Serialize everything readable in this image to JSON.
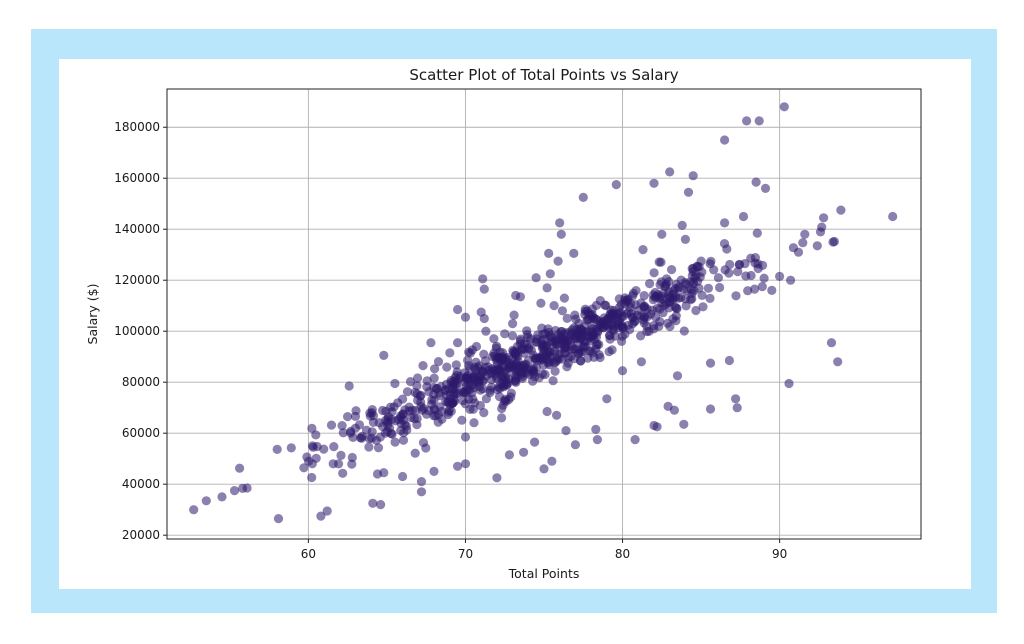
{
  "chart_data": {
    "type": "scatter",
    "title": "Scatter Plot of Total Points vs Salary",
    "xlabel": "Total Points",
    "ylabel": "Salary ($)",
    "xlim": [
      51,
      99
    ],
    "ylim": [
      18500,
      195000
    ],
    "xticks": [
      60,
      70,
      80,
      90
    ],
    "yticks": [
      20000,
      40000,
      60000,
      80000,
      100000,
      120000,
      140000,
      160000,
      180000
    ],
    "grid": true,
    "point_color": "#2e1a6b",
    "frame_color": "#b9e6fb",
    "outliers": [
      [
        90.3,
        188000
      ],
      [
        87.9,
        182500
      ],
      [
        88.7,
        182500
      ],
      [
        86.5,
        175000
      ],
      [
        83.0,
        162500
      ],
      [
        84.5,
        161000
      ],
      [
        79.6,
        157500
      ],
      [
        82.0,
        158000
      ],
      [
        88.5,
        158500
      ],
      [
        89.1,
        156000
      ],
      [
        84.2,
        154500
      ],
      [
        77.5,
        152500
      ],
      [
        76.0,
        142500
      ],
      [
        83.8,
        141500
      ],
      [
        76.1,
        138000
      ],
      [
        81.3,
        132000
      ],
      [
        82.5,
        138000
      ],
      [
        84.0,
        136000
      ],
      [
        76.9,
        130500
      ],
      [
        75.3,
        130500
      ],
      [
        75.9,
        127500
      ],
      [
        75.4,
        122500
      ],
      [
        74.5,
        121000
      ],
      [
        71.1,
        120500
      ],
      [
        71.2,
        116500
      ],
      [
        75.2,
        117000
      ],
      [
        73.2,
        114000
      ],
      [
        73.5,
        113500
      ],
      [
        76.3,
        113000
      ],
      [
        74.8,
        111000
      ],
      [
        69.5,
        108500
      ],
      [
        70.0,
        105500
      ],
      [
        71.0,
        107500
      ],
      [
        71.2,
        105000
      ],
      [
        73.0,
        103000
      ],
      [
        71.3,
        100000
      ],
      [
        72.5,
        99000
      ],
      [
        69.5,
        95500
      ],
      [
        70.7,
        94000
      ],
      [
        69.0,
        91500
      ],
      [
        64.8,
        90500
      ],
      [
        67.8,
        95500
      ],
      [
        73.5,
        95000
      ],
      [
        75.0,
        94000
      ],
      [
        76.0,
        91000
      ],
      [
        80.0,
        84500
      ],
      [
        67.3,
        86500
      ],
      [
        62.6,
        78500
      ],
      [
        81.2,
        88000
      ],
      [
        85.6,
        87500
      ],
      [
        86.8,
        88500
      ],
      [
        83.5,
        82500
      ],
      [
        62.5,
        66500
      ],
      [
        68.5,
        65500
      ],
      [
        72.3,
        66000
      ],
      [
        70.0,
        71500
      ],
      [
        75.2,
        68500
      ],
      [
        75.8,
        67000
      ],
      [
        79.0,
        73500
      ],
      [
        82.9,
        70500
      ],
      [
        83.3,
        69000
      ],
      [
        85.6,
        69500
      ],
      [
        87.2,
        73500
      ],
      [
        87.3,
        70000
      ],
      [
        82.0,
        63000
      ],
      [
        82.2,
        62500
      ],
      [
        83.9,
        63500
      ],
      [
        76.4,
        61000
      ],
      [
        78.3,
        61500
      ],
      [
        70.0,
        58500
      ],
      [
        78.4,
        57500
      ],
      [
        80.8,
        57500
      ],
      [
        77.0,
        55500
      ],
      [
        74.4,
        56500
      ],
      [
        73.7,
        52500
      ],
      [
        72.8,
        51500
      ],
      [
        75.5,
        49000
      ],
      [
        75.0,
        46000
      ],
      [
        69.5,
        47000
      ],
      [
        70.0,
        48000
      ],
      [
        68.0,
        45000
      ],
      [
        64.8,
        44500
      ],
      [
        64.4,
        44000
      ],
      [
        66.0,
        43000
      ],
      [
        72.0,
        42500
      ],
      [
        67.2,
        41000
      ],
      [
        67.2,
        37000
      ],
      [
        64.1,
        32500
      ],
      [
        64.6,
        32000
      ],
      [
        61.2,
        29500
      ],
      [
        60.8,
        27500
      ],
      [
        58.1,
        26500
      ],
      [
        90.6,
        79500
      ],
      [
        93.3,
        95500
      ],
      [
        93.7,
        88000
      ],
      [
        90.7,
        120000
      ],
      [
        97.2,
        145000
      ],
      [
        93.9,
        147500
      ],
      [
        92.8,
        144500
      ],
      [
        91.6,
        138000
      ],
      [
        87.7,
        145000
      ],
      [
        86.5,
        142500
      ],
      [
        85.0,
        127500
      ],
      [
        89.5,
        116000
      ],
      [
        88.9,
        117500
      ],
      [
        90.0,
        121500
      ],
      [
        91.2,
        131000
      ],
      [
        92.4,
        133500
      ],
      [
        93.4,
        135000
      ],
      [
        52.7,
        30000
      ],
      [
        53.5,
        33500
      ],
      [
        54.5,
        35000
      ],
      [
        55.3,
        37500
      ],
      [
        56.1,
        38500
      ]
    ],
    "trend": {
      "x_range": [
        52.3,
        93.5
      ],
      "y_at_x0": 31000,
      "y_at_x1": 141000,
      "count": 800,
      "noise_sd": 5200
    }
  }
}
